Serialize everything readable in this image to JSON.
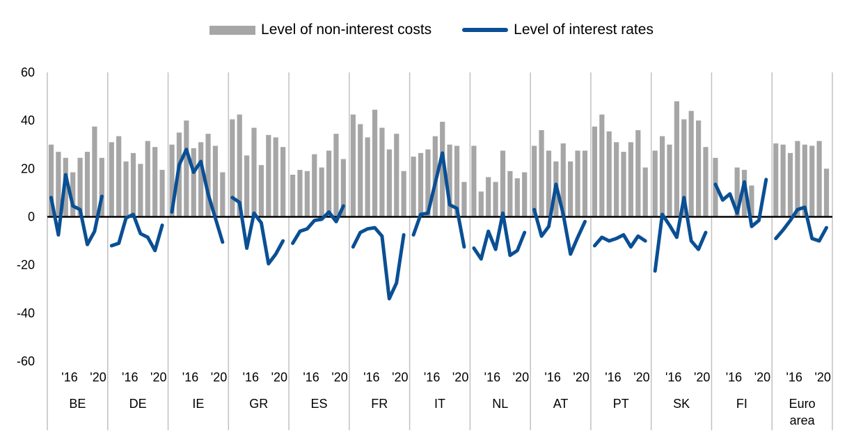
{
  "chart_data": {
    "type": "bar",
    "title": "",
    "ylim": [
      -60,
      60
    ],
    "yticks": [
      60,
      40,
      20,
      0,
      -20,
      -40,
      -60
    ],
    "legend_position": "top-center",
    "colors": {
      "bars": "#a6a6a6",
      "line": "#0a4f94",
      "zero_line": "#000000",
      "grid": "#c0c0c0"
    },
    "series": [
      {
        "name": "Level of non-interest costs",
        "type": "bar"
      },
      {
        "name": "Level of interest rates",
        "type": "line"
      }
    ],
    "groups": [
      {
        "label": [
          "BE"
        ],
        "costs": [
          30,
          27,
          24.5,
          18.5,
          24.5,
          27,
          37.5,
          24.5
        ],
        "rates": [
          8,
          -7.5,
          17.5,
          4.5,
          3,
          -11.5,
          -6,
          8.5
        ],
        "ticks": [
          "'16",
          "'20"
        ]
      },
      {
        "label": [
          "DE"
        ],
        "costs": [
          31,
          33.5,
          23,
          26.5,
          22,
          31.5,
          29,
          19.5
        ],
        "rates": [
          -12,
          -11,
          -0.5,
          1,
          -7,
          -8.5,
          -14,
          -3.5
        ],
        "ticks": [
          "'16",
          "'20"
        ]
      },
      {
        "label": [
          "IE"
        ],
        "costs": [
          30,
          35,
          40,
          28.5,
          31,
          34.5,
          29.5,
          18.5
        ],
        "rates": [
          2,
          21.5,
          28,
          18.5,
          23,
          9.5,
          -0.5,
          -10.5
        ],
        "ticks": [
          "'16",
          "'20"
        ]
      },
      {
        "label": [
          "GR"
        ],
        "costs": [
          40.5,
          42.5,
          25.5,
          37,
          21.5,
          34,
          33,
          29
        ],
        "rates": [
          8,
          6,
          -13,
          1.5,
          -2.5,
          -19.5,
          -15.5,
          -10
        ],
        "ticks": [
          "'16",
          "'20"
        ]
      },
      {
        "label": [
          "ES"
        ],
        "costs": [
          17.5,
          19.5,
          19,
          26,
          20.5,
          27.5,
          34.5,
          24
        ],
        "rates": [
          -11,
          -6,
          -5,
          -1.5,
          -1,
          2,
          -2,
          4.5
        ],
        "ticks": [
          "'16",
          "'20"
        ]
      },
      {
        "label": [
          "FR"
        ],
        "costs": [
          42.5,
          38.5,
          33,
          44.5,
          37,
          28,
          34.5,
          19
        ],
        "rates": [
          -12.5,
          -6.5,
          -5,
          -4.5,
          -8,
          -34,
          -27.5,
          -7.5
        ],
        "ticks": [
          "'16",
          "'20"
        ]
      },
      {
        "label": [
          "IT"
        ],
        "costs": [
          25,
          26.5,
          28,
          33.5,
          39.5,
          30,
          29.5,
          14.5
        ],
        "rates": [
          -7.5,
          1,
          1.5,
          14,
          26.5,
          5,
          3.5,
          -12.5
        ],
        "ticks": [
          "'16",
          "'20"
        ]
      },
      {
        "label": [
          "NL"
        ],
        "costs": [
          29.5,
          10.5,
          16.5,
          14.5,
          27.5,
          19,
          16,
          18.5
        ],
        "rates": [
          -13,
          -17.5,
          -6,
          -13.5,
          1.5,
          -16,
          -14,
          -6.5
        ],
        "ticks": [
          "'16",
          "'20"
        ]
      },
      {
        "label": [
          "AT"
        ],
        "costs": [
          29.5,
          36,
          27.5,
          23,
          30.5,
          23,
          27.5,
          27.5
        ],
        "rates": [
          3,
          -8,
          -4,
          13.5,
          1,
          -15.5,
          -8.5,
          -2
        ],
        "ticks": [
          "'16",
          "'20"
        ]
      },
      {
        "label": [
          "PT"
        ],
        "costs": [
          37.5,
          42.5,
          35.5,
          31,
          27,
          31,
          36,
          20.5
        ],
        "rates": [
          -12,
          -8.5,
          -10,
          -9,
          -7.5,
          -12.5,
          -8,
          -10
        ],
        "ticks": [
          "'16",
          "'20"
        ]
      },
      {
        "label": [
          "SK"
        ],
        "costs": [
          27.5,
          33.5,
          30,
          48,
          40.5,
          44,
          40,
          29
        ],
        "rates": [
          -22.5,
          1,
          -3.5,
          -8.5,
          8,
          -10,
          -13.5,
          -6.5
        ],
        "ticks": [
          "'16",
          "'20"
        ]
      },
      {
        "label": [
          "FI"
        ],
        "costs": [
          24.5,
          0,
          0,
          20.5,
          19.5,
          13,
          0,
          0
        ],
        "rates": [
          13.5,
          7,
          9.5,
          1.5,
          14.5,
          -4,
          -1.5,
          15.5
        ],
        "ticks": [
          "'16",
          "'20"
        ]
      },
      {
        "label": [
          "Euro",
          "area"
        ],
        "costs": [
          30.5,
          30,
          26.5,
          31.5,
          30,
          29.5,
          31.5,
          20
        ],
        "rates": [
          -9,
          -5.5,
          -1.5,
          3,
          4,
          -9,
          -10,
          -4.5
        ],
        "ticks": [
          "'16",
          "'20"
        ]
      }
    ]
  }
}
